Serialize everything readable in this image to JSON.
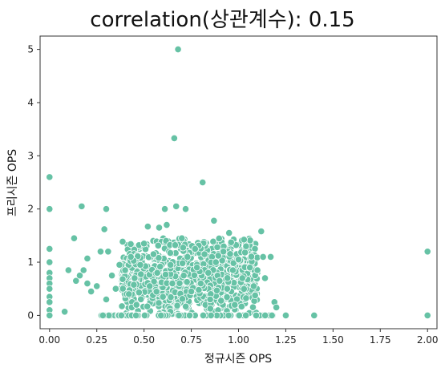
{
  "chart_data": {
    "type": "scatter",
    "title": "correlation(상관계수): 0.15",
    "xlabel": "정규시즌 OPS",
    "ylabel": "프리시즌 OPS",
    "xlim": [
      -0.05,
      2.05
    ],
    "ylim": [
      -0.25,
      5.25
    ],
    "x_ticks": [
      "0.00",
      "0.25",
      "0.50",
      "0.75",
      "1.00",
      "1.25",
      "1.50",
      "1.75",
      "2.00"
    ],
    "y_ticks": [
      "0",
      "1",
      "2",
      "3",
      "4",
      "5"
    ],
    "grid": false,
    "legend": "none",
    "marker_color": "#66c2a5",
    "points": [
      {
        "x": 0.0,
        "y": 2.6
      },
      {
        "x": 0.0,
        "y": 2.0
      },
      {
        "x": 0.0,
        "y": 1.25
      },
      {
        "x": 0.0,
        "y": 1.0
      },
      {
        "x": 0.0,
        "y": 0.8
      },
      {
        "x": 0.0,
        "y": 0.7
      },
      {
        "x": 0.0,
        "y": 0.6
      },
      {
        "x": 0.0,
        "y": 0.5
      },
      {
        "x": 0.0,
        "y": 0.35
      },
      {
        "x": 0.0,
        "y": 0.25
      },
      {
        "x": 0.0,
        "y": 0.1
      },
      {
        "x": 0.0,
        "y": 0.0
      },
      {
        "x": 0.08,
        "y": 0.07
      },
      {
        "x": 0.1,
        "y": 0.85
      },
      {
        "x": 0.13,
        "y": 1.45
      },
      {
        "x": 0.14,
        "y": 0.65
      },
      {
        "x": 0.16,
        "y": 0.75
      },
      {
        "x": 0.17,
        "y": 2.05
      },
      {
        "x": 0.18,
        "y": 0.85
      },
      {
        "x": 0.2,
        "y": 1.07
      },
      {
        "x": 0.2,
        "y": 0.6
      },
      {
        "x": 0.22,
        "y": 0.45
      },
      {
        "x": 0.25,
        "y": 0.55
      },
      {
        "x": 0.27,
        "y": 1.2
      },
      {
        "x": 0.29,
        "y": 1.62
      },
      {
        "x": 0.3,
        "y": 2.0
      },
      {
        "x": 0.3,
        "y": 0.3
      },
      {
        "x": 0.31,
        "y": 1.2
      },
      {
        "x": 0.33,
        "y": 0.75
      },
      {
        "x": 0.35,
        "y": 0.5
      },
      {
        "x": 0.37,
        "y": 0.95
      },
      {
        "x": 0.38,
        "y": 0.0
      },
      {
        "x": 0.4,
        "y": 0.85
      },
      {
        "x": 0.42,
        "y": 0.4
      },
      {
        "x": 0.43,
        "y": 1.1
      },
      {
        "x": 0.45,
        "y": 0.7
      },
      {
        "x": 0.46,
        "y": 0.2
      },
      {
        "x": 0.48,
        "y": 0.95
      },
      {
        "x": 0.5,
        "y": 1.35
      },
      {
        "x": 0.52,
        "y": 1.67
      },
      {
        "x": 0.53,
        "y": 0.55
      },
      {
        "x": 0.55,
        "y": 1.15
      },
      {
        "x": 0.57,
        "y": 0.8
      },
      {
        "x": 0.58,
        "y": 1.65
      },
      {
        "x": 0.6,
        "y": 0.35
      },
      {
        "x": 0.61,
        "y": 2.0
      },
      {
        "x": 0.62,
        "y": 1.7
      },
      {
        "x": 0.64,
        "y": 0.95
      },
      {
        "x": 0.65,
        "y": 0.6
      },
      {
        "x": 0.66,
        "y": 3.33
      },
      {
        "x": 0.67,
        "y": 2.05
      },
      {
        "x": 0.68,
        "y": 5.0
      },
      {
        "x": 0.7,
        "y": 1.45
      },
      {
        "x": 0.71,
        "y": 0.75
      },
      {
        "x": 0.72,
        "y": 2.0
      },
      {
        "x": 0.73,
        "y": 1.1
      },
      {
        "x": 0.75,
        "y": 0.45
      },
      {
        "x": 0.77,
        "y": 1.25
      },
      {
        "x": 0.78,
        "y": 0.9
      },
      {
        "x": 0.8,
        "y": 0.6
      },
      {
        "x": 0.81,
        "y": 2.5
      },
      {
        "x": 0.82,
        "y": 1.15
      },
      {
        "x": 0.84,
        "y": 0.8
      },
      {
        "x": 0.85,
        "y": 0.3
      },
      {
        "x": 0.87,
        "y": 1.78
      },
      {
        "x": 0.88,
        "y": 1.0
      },
      {
        "x": 0.9,
        "y": 0.65
      },
      {
        "x": 0.92,
        "y": 1.2
      },
      {
        "x": 0.94,
        "y": 0.5
      },
      {
        "x": 0.95,
        "y": 1.55
      },
      {
        "x": 0.97,
        "y": 0.85
      },
      {
        "x": 0.98,
        "y": 0.2
      },
      {
        "x": 1.0,
        "y": 1.05
      },
      {
        "x": 1.02,
        "y": 0.7
      },
      {
        "x": 1.04,
        "y": 1.3
      },
      {
        "x": 1.06,
        "y": 0.9
      },
      {
        "x": 1.08,
        "y": 0.55
      },
      {
        "x": 1.1,
        "y": 0.85
      },
      {
        "x": 1.12,
        "y": 1.58
      },
      {
        "x": 1.13,
        "y": 1.1
      },
      {
        "x": 1.14,
        "y": 0.7
      },
      {
        "x": 1.17,
        "y": 1.1
      },
      {
        "x": 1.19,
        "y": 0.25
      },
      {
        "x": 1.2,
        "y": 0.15
      },
      {
        "x": 1.25,
        "y": 0.0
      },
      {
        "x": 1.4,
        "y": 0.0
      },
      {
        "x": 2.0,
        "y": 1.2
      },
      {
        "x": 2.0,
        "y": 0.0
      }
    ]
  }
}
